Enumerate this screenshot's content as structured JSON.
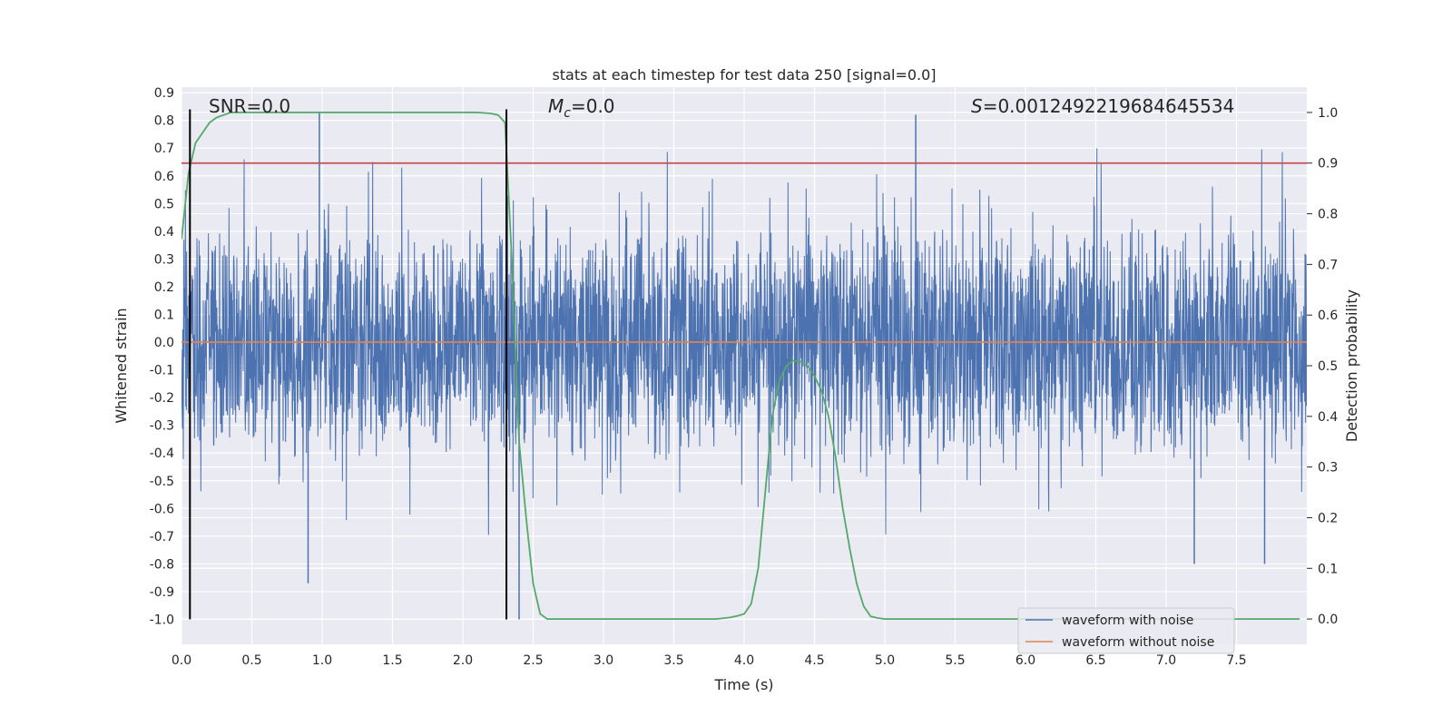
{
  "chart_data": {
    "type": "line",
    "title": "stats at each timestep for test data 250 [signal=0.0]",
    "xlabel": "Time (s)",
    "ylabel": "Whitened strain",
    "y2label": "Detection probability",
    "xlim": [
      0.0,
      8.0
    ],
    "ylim": [
      -1.09,
      0.92
    ],
    "y2lim": [
      -0.05,
      1.05
    ],
    "x_ticks": [
      "0.0",
      "0.5",
      "1.0",
      "1.5",
      "2.0",
      "2.5",
      "3.0",
      "3.5",
      "4.0",
      "4.5",
      "5.0",
      "5.5",
      "6.0",
      "6.5",
      "7.0",
      "7.5"
    ],
    "y_ticks": [
      "0.9",
      "0.8",
      "0.7",
      "0.6",
      "0.5",
      "0.4",
      "0.3",
      "0.2",
      "0.1",
      "0.0",
      "-0.1",
      "-0.2",
      "-0.3",
      "-0.4",
      "-0.5",
      "-0.6",
      "-0.7",
      "-0.8",
      "-0.9",
      "-1.0"
    ],
    "y2_ticks": [
      "1.0",
      "0.9",
      "0.8",
      "0.7",
      "0.6",
      "0.5",
      "0.4",
      "0.3",
      "0.2",
      "0.1",
      "0.0"
    ],
    "annotations": {
      "snr": "SNR=0.0",
      "mc_symbol": "M",
      "mc_sub": "c",
      "mc_value": "=0.0",
      "s_symbol": "S",
      "s_value": "=0.0012492219684645534"
    },
    "legend": {
      "location": "lower-right",
      "entries": [
        {
          "label": "waveform with noise",
          "color": "#4c72b0"
        },
        {
          "label": "waveform without noise",
          "color": "#dd8452"
        }
      ]
    },
    "series": [
      {
        "name": "waveform with noise",
        "axis": "left",
        "color": "#4c72b0",
        "style": "noise",
        "duration_s": 8.0,
        "envelope": [
          -0.55,
          0.55
        ],
        "peak_max": 0.82,
        "peak_min": -1.0
      },
      {
        "name": "waveform without noise",
        "axis": "left",
        "color": "#dd8452",
        "x": [
          0.0,
          8.0
        ],
        "y": [
          0.0,
          0.0
        ]
      },
      {
        "name": "detection probability",
        "axis": "right",
        "color": "#55a868",
        "x": [
          0.0,
          0.05,
          0.1,
          0.15,
          0.2,
          0.25,
          0.3,
          0.35,
          0.4,
          0.5,
          1.0,
          1.5,
          2.0,
          2.1,
          2.2,
          2.25,
          2.3,
          2.35,
          2.4,
          2.45,
          2.5,
          2.55,
          2.6,
          3.0,
          3.5,
          3.8,
          3.9,
          3.95,
          4.0,
          4.05,
          4.1,
          4.15,
          4.2,
          4.25,
          4.3,
          4.35,
          4.4,
          4.45,
          4.5,
          4.55,
          4.6,
          4.65,
          4.7,
          4.75,
          4.8,
          4.85,
          4.9,
          4.95,
          5.0,
          5.1,
          5.5,
          6.0,
          7.0,
          7.5,
          7.95
        ],
        "y": [
          0.75,
          0.88,
          0.94,
          0.96,
          0.98,
          0.99,
          0.995,
          1.0,
          1.0,
          1.0,
          1.0,
          1.0,
          1.0,
          1.0,
          0.998,
          0.995,
          0.98,
          0.7,
          0.35,
          0.2,
          0.07,
          0.01,
          0.0,
          0.0,
          0.0,
          0.0,
          0.003,
          0.006,
          0.01,
          0.03,
          0.1,
          0.25,
          0.4,
          0.47,
          0.5,
          0.51,
          0.508,
          0.5,
          0.48,
          0.45,
          0.4,
          0.32,
          0.22,
          0.14,
          0.07,
          0.025,
          0.005,
          0.002,
          0.0,
          0.0,
          0.0,
          0.0,
          0.0,
          0.0,
          0.0
        ]
      },
      {
        "name": "detection threshold",
        "axis": "right",
        "color": "#c44e52",
        "x": [
          0.0,
          8.0
        ],
        "y": [
          0.9,
          0.9
        ]
      },
      {
        "name": "segment marker 1",
        "axis": "left",
        "color": "#000000",
        "x": [
          0.06,
          0.06
        ],
        "y": [
          -1.0,
          0.84
        ]
      },
      {
        "name": "segment marker 2",
        "axis": "left",
        "color": "#000000",
        "x": [
          2.31,
          2.31
        ],
        "y": [
          -1.0,
          0.84
        ]
      }
    ]
  }
}
